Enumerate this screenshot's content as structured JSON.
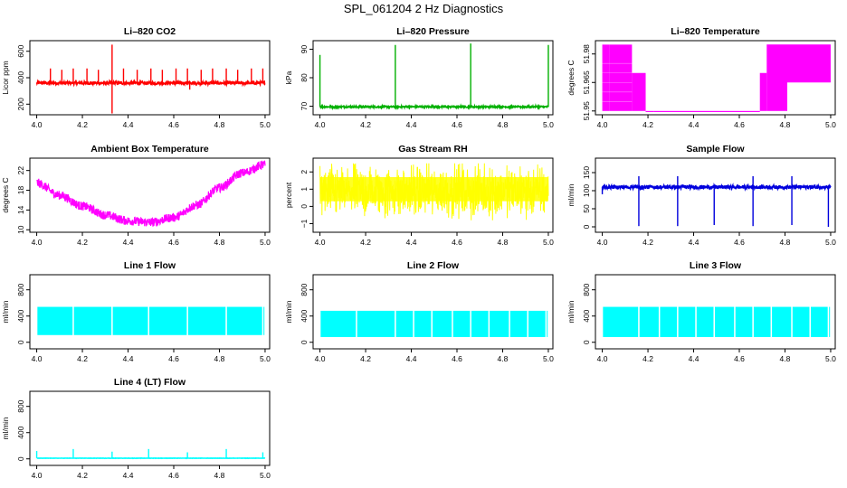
{
  "figure_title": "SPL_061204  2 Hz Diagnostics",
  "chart_data": [
    {
      "type": "line",
      "title": "Li–820 CO2",
      "ylabel": "Licor ppm",
      "color": "#ff0000",
      "xlim": [
        3.97,
        5.02
      ],
      "ylim": [
        120,
        680
      ],
      "xticks": [
        4.0,
        4.2,
        4.4,
        4.6,
        4.8,
        5.0
      ],
      "xtick_labels": [
        "4.0",
        "4.2",
        "4.4",
        "4.6",
        "4.8",
        "5.0"
      ],
      "yticks": [
        200,
        400,
        600
      ],
      "ytick_labels": [
        "200",
        "400",
        "600"
      ],
      "pattern": "spiky",
      "base": 360,
      "noise": 12,
      "spikes": [
        {
          "x": 4.06,
          "y": 470
        },
        {
          "x": 4.11,
          "y": 460
        },
        {
          "x": 4.16,
          "y": 470
        },
        {
          "x": 4.22,
          "y": 470
        },
        {
          "x": 4.27,
          "y": 460
        },
        {
          "x": 4.33,
          "y": 650
        },
        {
          "x": 4.33,
          "y": 130
        },
        {
          "x": 4.38,
          "y": 470
        },
        {
          "x": 4.44,
          "y": 460
        },
        {
          "x": 4.5,
          "y": 470
        },
        {
          "x": 4.55,
          "y": 460
        },
        {
          "x": 4.61,
          "y": 470
        },
        {
          "x": 4.66,
          "y": 470
        },
        {
          "x": 4.67,
          "y": 310
        },
        {
          "x": 4.72,
          "y": 460
        },
        {
          "x": 4.77,
          "y": 470
        },
        {
          "x": 4.83,
          "y": 470
        },
        {
          "x": 4.88,
          "y": 460
        },
        {
          "x": 4.94,
          "y": 470
        },
        {
          "x": 4.99,
          "y": 470
        }
      ]
    },
    {
      "type": "line",
      "title": "Li–820 Pressure",
      "ylabel": "kPa",
      "color": "#00b000",
      "xlim": [
        3.97,
        5.02
      ],
      "ylim": [
        67,
        93
      ],
      "xticks": [
        4.0,
        4.2,
        4.4,
        4.6,
        4.8,
        5.0
      ],
      "xtick_labels": [
        "4.0",
        "4.2",
        "4.4",
        "4.6",
        "4.8",
        "5.0"
      ],
      "yticks": [
        70,
        80,
        90
      ],
      "ytick_labels": [
        "70",
        "80",
        "90"
      ],
      "pattern": "spiky",
      "base": 69.8,
      "noise": 0.3,
      "spikes": [
        {
          "x": 4.33,
          "y": 91.5
        },
        {
          "x": 4.66,
          "y": 92
        },
        {
          "x": 5.0,
          "y": 91.5
        },
        {
          "x": 4.0,
          "y": 88
        }
      ]
    },
    {
      "type": "line",
      "title": "Li–820 Temperature",
      "ylabel": "degrees C",
      "color": "#ff00ff",
      "xlim": [
        3.97,
        5.02
      ],
      "ylim": [
        51.948,
        51.987
      ],
      "xticks": [
        4.0,
        4.2,
        4.4,
        4.6,
        4.8,
        5.0
      ],
      "xtick_labels": [
        "4.0",
        "4.2",
        "4.4",
        "4.6",
        "4.8",
        "5.0"
      ],
      "yticks": [
        51.95,
        51.965,
        51.98
      ],
      "ytick_labels": [
        "51.95",
        "51.965",
        "51.98"
      ],
      "pattern": "steps",
      "bands": [
        {
          "x0": 4.0,
          "x1": 4.03,
          "lo": 51.95,
          "hi": 51.985
        },
        {
          "x0": 4.03,
          "x1": 4.13,
          "lo": 51.95,
          "hi": 51.985
        },
        {
          "x0": 4.13,
          "x1": 4.19,
          "lo": 51.95,
          "hi": 51.97
        },
        {
          "x0": 4.19,
          "x1": 4.225,
          "lo": 51.95,
          "hi": 51.95
        },
        {
          "x0": 4.225,
          "x1": 4.69,
          "lo": 51.95,
          "hi": 51.95
        },
        {
          "x0": 4.69,
          "x1": 4.72,
          "lo": 51.95,
          "hi": 51.97
        },
        {
          "x0": 4.72,
          "x1": 4.81,
          "lo": 51.95,
          "hi": 51.985
        },
        {
          "x0": 4.81,
          "x1": 5.0,
          "lo": 51.965,
          "hi": 51.985
        }
      ]
    },
    {
      "type": "line",
      "title": "Ambient Box Temperature",
      "ylabel": "degrees C",
      "color": "#ff00ff",
      "xlim": [
        3.97,
        5.02
      ],
      "ylim": [
        9.5,
        24.5
      ],
      "xticks": [
        4.0,
        4.2,
        4.4,
        4.6,
        4.8,
        5.0
      ],
      "xtick_labels": [
        "4.0",
        "4.2",
        "4.4",
        "4.6",
        "4.8",
        "5.0"
      ],
      "yticks": [
        10,
        14,
        18,
        22
      ],
      "ytick_labels": [
        "10",
        "14",
        "18",
        "22"
      ],
      "pattern": "curve",
      "noise": 0.9,
      "curve": [
        [
          4.0,
          19.5
        ],
        [
          4.1,
          17.0
        ],
        [
          4.2,
          14.8
        ],
        [
          4.3,
          13.0
        ],
        [
          4.4,
          11.8
        ],
        [
          4.5,
          11.5
        ],
        [
          4.6,
          12.5
        ],
        [
          4.7,
          15.0
        ],
        [
          4.8,
          18.5
        ],
        [
          4.9,
          21.5
        ],
        [
          5.0,
          23.2
        ]
      ]
    },
    {
      "type": "line",
      "title": "Gas Stream RH",
      "ylabel": "percent",
      "color": "#ffff00",
      "xlim": [
        3.97,
        5.02
      ],
      "ylim": [
        -1.5,
        2.8
      ],
      "xticks": [
        4.0,
        4.2,
        4.4,
        4.6,
        4.8,
        5.0
      ],
      "xtick_labels": [
        "4.0",
        "4.2",
        "4.4",
        "4.6",
        "4.8",
        "5.0"
      ],
      "yticks": [
        -1,
        0,
        1,
        2
      ],
      "ytick_labels": [
        "−1",
        "0",
        "1",
        "2"
      ],
      "pattern": "noise",
      "lo": -0.8,
      "hi": 2.5
    },
    {
      "type": "line",
      "title": "Sample Flow",
      "ylabel": "ml/min",
      "color": "#0000dd",
      "xlim": [
        3.97,
        5.02
      ],
      "ylim": [
        -15,
        190
      ],
      "xticks": [
        4.0,
        4.2,
        4.4,
        4.6,
        4.8,
        5.0
      ],
      "xtick_labels": [
        "4.0",
        "4.2",
        "4.4",
        "4.6",
        "4.8",
        "5.0"
      ],
      "yticks": [
        0,
        50,
        100,
        150
      ],
      "ytick_labels": [
        "0",
        "50",
        "100",
        "150"
      ],
      "pattern": "spiky",
      "base": 110,
      "noise": 5,
      "spikes": [
        {
          "x": 4.16,
          "y": 2
        },
        {
          "x": 4.33,
          "y": 2
        },
        {
          "x": 4.49,
          "y": 5
        },
        {
          "x": 4.66,
          "y": 2
        },
        {
          "x": 4.83,
          "y": 5
        },
        {
          "x": 4.99,
          "y": 0
        },
        {
          "x": 4.0,
          "y": 90
        },
        {
          "x": 4.16,
          "y": 140
        },
        {
          "x": 4.33,
          "y": 140
        },
        {
          "x": 4.66,
          "y": 140
        },
        {
          "x": 4.83,
          "y": 140
        }
      ]
    },
    {
      "type": "line",
      "title": "Line 1 Flow",
      "ylabel": "ml/min",
      "color": "#00ffff",
      "xlim": [
        3.97,
        5.02
      ],
      "ylim": [
        -100,
        1030
      ],
      "xticks": [
        4.0,
        4.2,
        4.4,
        4.6,
        4.8,
        5.0
      ],
      "xtick_labels": [
        "4.0",
        "4.2",
        "4.4",
        "4.6",
        "4.8",
        "5.0"
      ],
      "yticks": [
        0,
        400,
        800
      ],
      "ytick_labels": [
        "0",
        "400",
        "800"
      ],
      "pattern": "blocks",
      "lo": 110,
      "hi": 540,
      "gaps": [
        4.16,
        4.33,
        4.49,
        4.66,
        4.83,
        4.99
      ]
    },
    {
      "type": "line",
      "title": "Line 2 Flow",
      "ylabel": "ml/min",
      "color": "#00ffff",
      "xlim": [
        3.97,
        5.02
      ],
      "ylim": [
        -100,
        1030
      ],
      "xticks": [
        4.0,
        4.2,
        4.4,
        4.6,
        4.8,
        5.0
      ],
      "xtick_labels": [
        "4.0",
        "4.2",
        "4.4",
        "4.6",
        "4.8",
        "5.0"
      ],
      "yticks": [
        0,
        400,
        800
      ],
      "ytick_labels": [
        "0",
        "400",
        "800"
      ],
      "pattern": "blocks",
      "lo": 80,
      "hi": 480,
      "gaps": [
        4.16,
        4.33,
        4.41,
        4.49,
        4.58,
        4.66,
        4.74,
        4.83,
        4.91,
        4.99
      ]
    },
    {
      "type": "line",
      "title": "Line 3 Flow",
      "ylabel": "ml/min",
      "color": "#00ffff",
      "xlim": [
        3.97,
        5.02
      ],
      "ylim": [
        -100,
        1030
      ],
      "xticks": [
        4.0,
        4.2,
        4.4,
        4.6,
        4.8,
        5.0
      ],
      "xtick_labels": [
        "4.0",
        "4.2",
        "4.4",
        "4.6",
        "4.8",
        "5.0"
      ],
      "yticks": [
        0,
        400,
        800
      ],
      "ytick_labels": [
        "0",
        "400",
        "800"
      ],
      "pattern": "blocks",
      "lo": 80,
      "hi": 540,
      "gaps": [
        4.16,
        4.25,
        4.33,
        4.41,
        4.49,
        4.58,
        4.66,
        4.74,
        4.83,
        4.91,
        4.99
      ]
    },
    {
      "type": "line",
      "title": "Line 4 (LT) Flow",
      "ylabel": "ml/min",
      "color": "#00ffff",
      "xlim": [
        3.97,
        5.02
      ],
      "ylim": [
        -100,
        1030
      ],
      "xticks": [
        4.0,
        4.2,
        4.4,
        4.6,
        4.8,
        5.0
      ],
      "xtick_labels": [
        "4.0",
        "4.2",
        "4.4",
        "4.6",
        "4.8",
        "5.0"
      ],
      "yticks": [
        0,
        400,
        800
      ],
      "ytick_labels": [
        "0",
        "400",
        "800"
      ],
      "pattern": "spiky",
      "base": 10,
      "noise": 2,
      "spikes": [
        {
          "x": 4.0,
          "y": 120
        },
        {
          "x": 4.16,
          "y": 150
        },
        {
          "x": 4.33,
          "y": 110
        },
        {
          "x": 4.49,
          "y": 150
        },
        {
          "x": 4.66,
          "y": 100
        },
        {
          "x": 4.83,
          "y": 150
        },
        {
          "x": 4.99,
          "y": 100
        }
      ]
    }
  ]
}
